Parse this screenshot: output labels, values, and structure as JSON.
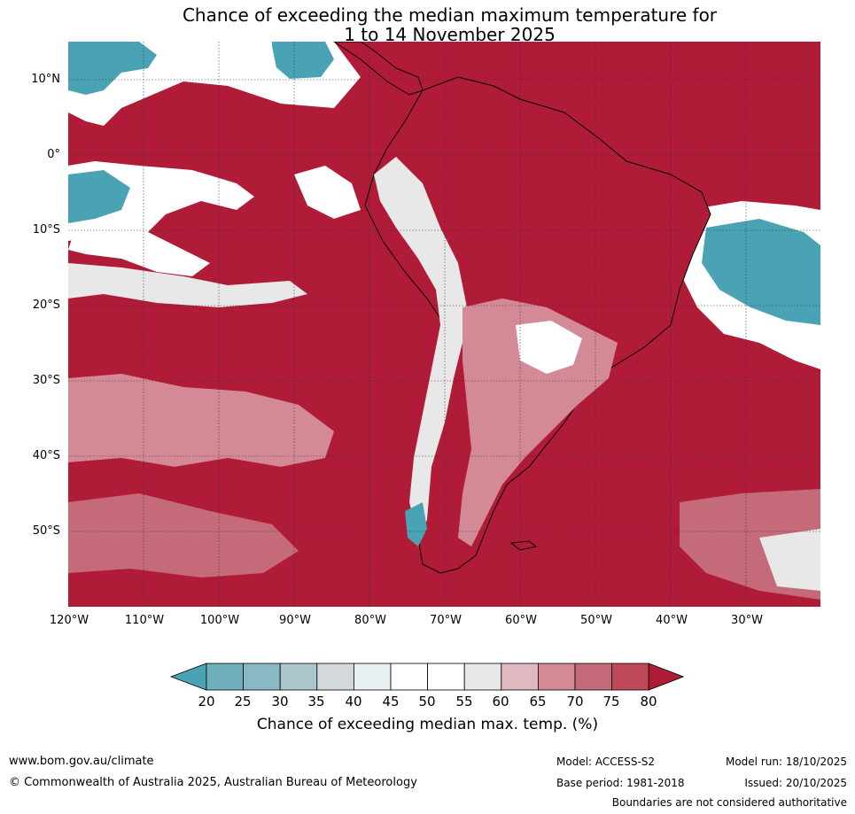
{
  "title": {
    "line1": "Chance of exceeding the median maximum temperature for",
    "line2": "1 to 14 November 2025"
  },
  "axes": {
    "lat_labels": [
      "10°N",
      "0°",
      "10°S",
      "20°S",
      "30°S",
      "40°S",
      "50°S"
    ],
    "lon_labels": [
      "120°W",
      "110°W",
      "100°W",
      "90°W",
      "80°W",
      "70°W",
      "60°W",
      "50°W",
      "40°W",
      "30°W"
    ]
  },
  "colorbar": {
    "ticks": [
      "20",
      "25",
      "30",
      "35",
      "40",
      "45",
      "50",
      "55",
      "60",
      "65",
      "70",
      "75",
      "80"
    ],
    "colors": [
      "#4aa3b4",
      "#6fb0bc",
      "#8ab8c4",
      "#aac5cb",
      "#d3d8da",
      "#e9f0f2",
      "#ffffff",
      "#ffffff",
      "#e8e8e8",
      "#e0b8bf",
      "#d48a96",
      "#c46a78",
      "#be4858",
      "#b01b37"
    ],
    "title": "Chance of exceeding median max. temp. (%)"
  },
  "footer": {
    "website": "www.bom.gov.au/climate",
    "copyright": "© Commonwealth of Australia 2025, Australian Bureau of Meteorology",
    "model": "Model: ACCESS-S2",
    "base_period": "Base period: 1981-2018",
    "model_run": "Model run: 18/10/2025",
    "issued": "Issued: 20/10/2025",
    "disclaimer": "Boundaries are not considered authoritative"
  }
}
